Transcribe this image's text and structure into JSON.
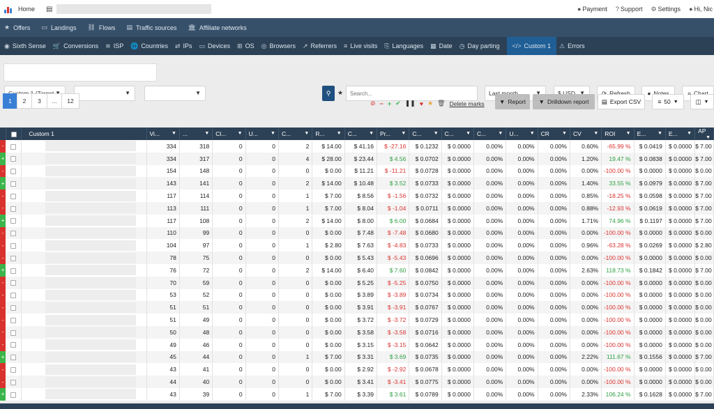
{
  "topbar": {
    "home": "Home",
    "payment": "Payment",
    "support": "Support",
    "settings": "Settings",
    "user": "Hi, Nic"
  },
  "nav1": [
    {
      "icon": "star-icon",
      "glyph": "★",
      "label": "Offers"
    },
    {
      "icon": "landings-icon",
      "glyph": "▭",
      "label": "Landings"
    },
    {
      "icon": "flows-icon",
      "glyph": "⛓",
      "label": "Flows"
    },
    {
      "icon": "traffic-icon",
      "glyph": "▤",
      "label": "Traffic sources"
    },
    {
      "icon": "bank-icon",
      "glyph": "🏛",
      "label": "Affiliate networks"
    }
  ],
  "nav2": [
    {
      "icon": "eye-icon",
      "glyph": "◉",
      "label": "Sixth Sense"
    },
    {
      "icon": "cart-icon",
      "glyph": "🛒",
      "label": "Conversions"
    },
    {
      "icon": "wifi-icon",
      "glyph": "≋",
      "label": "ISP"
    },
    {
      "icon": "globe-icon",
      "glyph": "🌐",
      "label": "Countries"
    },
    {
      "icon": "exchange-icon",
      "glyph": "⇄",
      "label": "IPs"
    },
    {
      "icon": "laptop-icon",
      "glyph": "▭",
      "label": "Devices"
    },
    {
      "icon": "windows-icon",
      "glyph": "⊞",
      "label": "OS"
    },
    {
      "icon": "browser-icon",
      "glyph": "◎",
      "label": "Browsers"
    },
    {
      "icon": "external-link-icon",
      "glyph": "↗",
      "label": "Referrers"
    },
    {
      "icon": "live-icon",
      "glyph": "≡",
      "label": "Live visits"
    },
    {
      "icon": "language-icon",
      "glyph": "⎘",
      "label": "Languages"
    },
    {
      "icon": "calendar-icon",
      "glyph": "▦",
      "label": "Date"
    },
    {
      "icon": "clock-icon",
      "glyph": "◷",
      "label": "Day parting"
    },
    {
      "icon": "code-icon",
      "glyph": "</>",
      "label": "Custom 1"
    },
    {
      "icon": "warning-icon",
      "glyph": "⚠",
      "label": "Errors"
    }
  ],
  "filters": {
    "custom_select": "Custom 1 (Target",
    "search_placeholder": "Search...",
    "date_range": "Last month",
    "currency": "$ USD",
    "refresh": "Refresh",
    "notes": "Notes",
    "chart": "Chart"
  },
  "pager": [
    "1",
    "2",
    "3",
    "...",
    "12"
  ],
  "actions": {
    "delete_marks": "Delete marks",
    "report": "Report",
    "drilldown": "Drilldown report",
    "export": "Export CSV",
    "per_page": "50"
  },
  "columns": [
    "Custom 1",
    "Vi...",
    "...",
    "Cl...",
    "U...",
    "C...",
    "R...",
    "C...",
    "Pr...",
    "C...",
    "C...",
    "C...",
    "U...",
    "CR",
    "CV",
    "ROI",
    "E...",
    "E...",
    "AP"
  ],
  "rows": [
    {
      "m": "-",
      "c": [
        "334",
        "318",
        "0",
        "0",
        "2",
        "$ 14.00",
        "$ 41.16",
        "$ -27.16",
        "$ 0.1232",
        "$ 0.0000",
        "0.00%",
        "0.00%",
        "0.00%",
        "0.60%",
        "-65.99 %",
        "$ 0.0419",
        "$ 0.0000",
        "$ 7.00"
      ]
    },
    {
      "m": "+",
      "c": [
        "334",
        "317",
        "0",
        "0",
        "4",
        "$ 28.00",
        "$ 23.44",
        "$ 4.56",
        "$ 0.0702",
        "$ 0.0000",
        "0.00%",
        "0.00%",
        "0.00%",
        "1.20%",
        "19.47 %",
        "$ 0.0838",
        "$ 0.0000",
        "$ 7.00"
      ]
    },
    {
      "m": "-",
      "c": [
        "154",
        "148",
        "0",
        "0",
        "0",
        "$ 0.00",
        "$ 11.21",
        "$ -11.21",
        "$ 0.0728",
        "$ 0.0000",
        "0.00%",
        "0.00%",
        "0.00%",
        "0.00%",
        "-100.00 %",
        "$ 0.0000",
        "$ 0.0000",
        "$ 0.00"
      ]
    },
    {
      "m": "+",
      "c": [
        "143",
        "141",
        "0",
        "0",
        "2",
        "$ 14.00",
        "$ 10.48",
        "$ 3.52",
        "$ 0.0733",
        "$ 0.0000",
        "0.00%",
        "0.00%",
        "0.00%",
        "1.40%",
        "33.55 %",
        "$ 0.0979",
        "$ 0.0000",
        "$ 7.00"
      ]
    },
    {
      "m": "-",
      "c": [
        "117",
        "114",
        "0",
        "0",
        "1",
        "$ 7.00",
        "$ 8.56",
        "$ -1.56",
        "$ 0.0732",
        "$ 0.0000",
        "0.00%",
        "0.00%",
        "0.00%",
        "0.85%",
        "-18.25 %",
        "$ 0.0598",
        "$ 0.0000",
        "$ 7.00"
      ]
    },
    {
      "m": "-",
      "c": [
        "113",
        "111",
        "0",
        "0",
        "1",
        "$ 7.00",
        "$ 8.04",
        "$ -1.04",
        "$ 0.0711",
        "$ 0.0000",
        "0.00%",
        "0.00%",
        "0.00%",
        "0.88%",
        "-12.93 %",
        "$ 0.0619",
        "$ 0.0000",
        "$ 7.00"
      ]
    },
    {
      "m": "+",
      "c": [
        "117",
        "108",
        "0",
        "0",
        "2",
        "$ 14.00",
        "$ 8.00",
        "$ 6.00",
        "$ 0.0684",
        "$ 0.0000",
        "0.00%",
        "0.00%",
        "0.00%",
        "1.71%",
        "74.96 %",
        "$ 0.1197",
        "$ 0.0000",
        "$ 7.00"
      ]
    },
    {
      "m": "-",
      "c": [
        "110",
        "99",
        "0",
        "0",
        "0",
        "$ 0.00",
        "$ 7.48",
        "$ -7.48",
        "$ 0.0680",
        "$ 0.0000",
        "0.00%",
        "0.00%",
        "0.00%",
        "0.00%",
        "-100.00 %",
        "$ 0.0000",
        "$ 0.0000",
        "$ 0.00"
      ]
    },
    {
      "m": "-",
      "c": [
        "104",
        "97",
        "0",
        "0",
        "1",
        "$ 2.80",
        "$ 7.63",
        "$ -4.83",
        "$ 0.0733",
        "$ 0.0000",
        "0.00%",
        "0.00%",
        "0.00%",
        "0.96%",
        "-63.28 %",
        "$ 0.0269",
        "$ 0.0000",
        "$ 2.80"
      ]
    },
    {
      "m": "-",
      "c": [
        "78",
        "75",
        "0",
        "0",
        "0",
        "$ 0.00",
        "$ 5.43",
        "$ -5.43",
        "$ 0.0696",
        "$ 0.0000",
        "0.00%",
        "0.00%",
        "0.00%",
        "0.00%",
        "-100.00 %",
        "$ 0.0000",
        "$ 0.0000",
        "$ 0.00"
      ]
    },
    {
      "m": "+",
      "c": [
        "76",
        "72",
        "0",
        "0",
        "2",
        "$ 14.00",
        "$ 6.40",
        "$ 7.60",
        "$ 0.0842",
        "$ 0.0000",
        "0.00%",
        "0.00%",
        "0.00%",
        "2.63%",
        "118.73 %",
        "$ 0.1842",
        "$ 0.0000",
        "$ 7.00"
      ]
    },
    {
      "m": "-",
      "c": [
        "70",
        "59",
        "0",
        "0",
        "0",
        "$ 0.00",
        "$ 5.25",
        "$ -5.25",
        "$ 0.0750",
        "$ 0.0000",
        "0.00%",
        "0.00%",
        "0.00%",
        "0.00%",
        "-100.00 %",
        "$ 0.0000",
        "$ 0.0000",
        "$ 0.00"
      ]
    },
    {
      "m": "-",
      "c": [
        "53",
        "52",
        "0",
        "0",
        "0",
        "$ 0.00",
        "$ 3.89",
        "$ -3.89",
        "$ 0.0734",
        "$ 0.0000",
        "0.00%",
        "0.00%",
        "0.00%",
        "0.00%",
        "-100.00 %",
        "$ 0.0000",
        "$ 0.0000",
        "$ 0.00"
      ]
    },
    {
      "m": "-",
      "c": [
        "51",
        "51",
        "0",
        "0",
        "0",
        "$ 0.00",
        "$ 3.91",
        "$ -3.91",
        "$ 0.0767",
        "$ 0.0000",
        "0.00%",
        "0.00%",
        "0.00%",
        "0.00%",
        "-100.00 %",
        "$ 0.0000",
        "$ 0.0000",
        "$ 0.00"
      ]
    },
    {
      "m": "-",
      "c": [
        "51",
        "49",
        "0",
        "0",
        "0",
        "$ 0.00",
        "$ 3.72",
        "$ -3.72",
        "$ 0.0729",
        "$ 0.0000",
        "0.00%",
        "0.00%",
        "0.00%",
        "0.00%",
        "-100.00 %",
        "$ 0.0000",
        "$ 0.0000",
        "$ 0.00"
      ]
    },
    {
      "m": "-",
      "c": [
        "50",
        "48",
        "0",
        "0",
        "0",
        "$ 0.00",
        "$ 3.58",
        "$ -3.58",
        "$ 0.0716",
        "$ 0.0000",
        "0.00%",
        "0.00%",
        "0.00%",
        "0.00%",
        "-100.00 %",
        "$ 0.0000",
        "$ 0.0000",
        "$ 0.00"
      ]
    },
    {
      "m": "-",
      "c": [
        "49",
        "46",
        "0",
        "0",
        "0",
        "$ 0.00",
        "$ 3.15",
        "$ -3.15",
        "$ 0.0642",
        "$ 0.0000",
        "0.00%",
        "0.00%",
        "0.00%",
        "0.00%",
        "-100.00 %",
        "$ 0.0000",
        "$ 0.0000",
        "$ 0.00"
      ]
    },
    {
      "m": "+",
      "c": [
        "45",
        "44",
        "0",
        "0",
        "1",
        "$ 7.00",
        "$ 3.31",
        "$ 3.69",
        "$ 0.0735",
        "$ 0.0000",
        "0.00%",
        "0.00%",
        "0.00%",
        "2.22%",
        "111.67 %",
        "$ 0.1556",
        "$ 0.0000",
        "$ 7.00"
      ]
    },
    {
      "m": "-",
      "c": [
        "43",
        "41",
        "0",
        "0",
        "0",
        "$ 0.00",
        "$ 2.92",
        "$ -2.92",
        "$ 0.0678",
        "$ 0.0000",
        "0.00%",
        "0.00%",
        "0.00%",
        "0.00%",
        "-100.00 %",
        "$ 0.0000",
        "$ 0.0000",
        "$ 0.00"
      ]
    },
    {
      "m": "-",
      "c": [
        "44",
        "40",
        "0",
        "0",
        "0",
        "$ 0.00",
        "$ 3.41",
        "$ -3.41",
        "$ 0.0775",
        "$ 0.0000",
        "0.00%",
        "0.00%",
        "0.00%",
        "0.00%",
        "-100.00 %",
        "$ 0.0000",
        "$ 0.0000",
        "$ 0.00"
      ]
    },
    {
      "m": "+",
      "c": [
        "43",
        "39",
        "0",
        "0",
        "1",
        "$ 7.00",
        "$ 3.39",
        "$ 3.61",
        "$ 0.0789",
        "$ 0.0000",
        "0.00%",
        "0.00%",
        "0.00%",
        "2.33%",
        "106.24 %",
        "$ 0.1628",
        "$ 0.0000",
        "$ 7.00"
      ]
    }
  ],
  "colors": {
    "positive": "#2ea043",
    "negative": "#d9322e",
    "nav_dark": "#2c4156",
    "nav": "#37506a",
    "active_tab": "#1f5f96"
  }
}
